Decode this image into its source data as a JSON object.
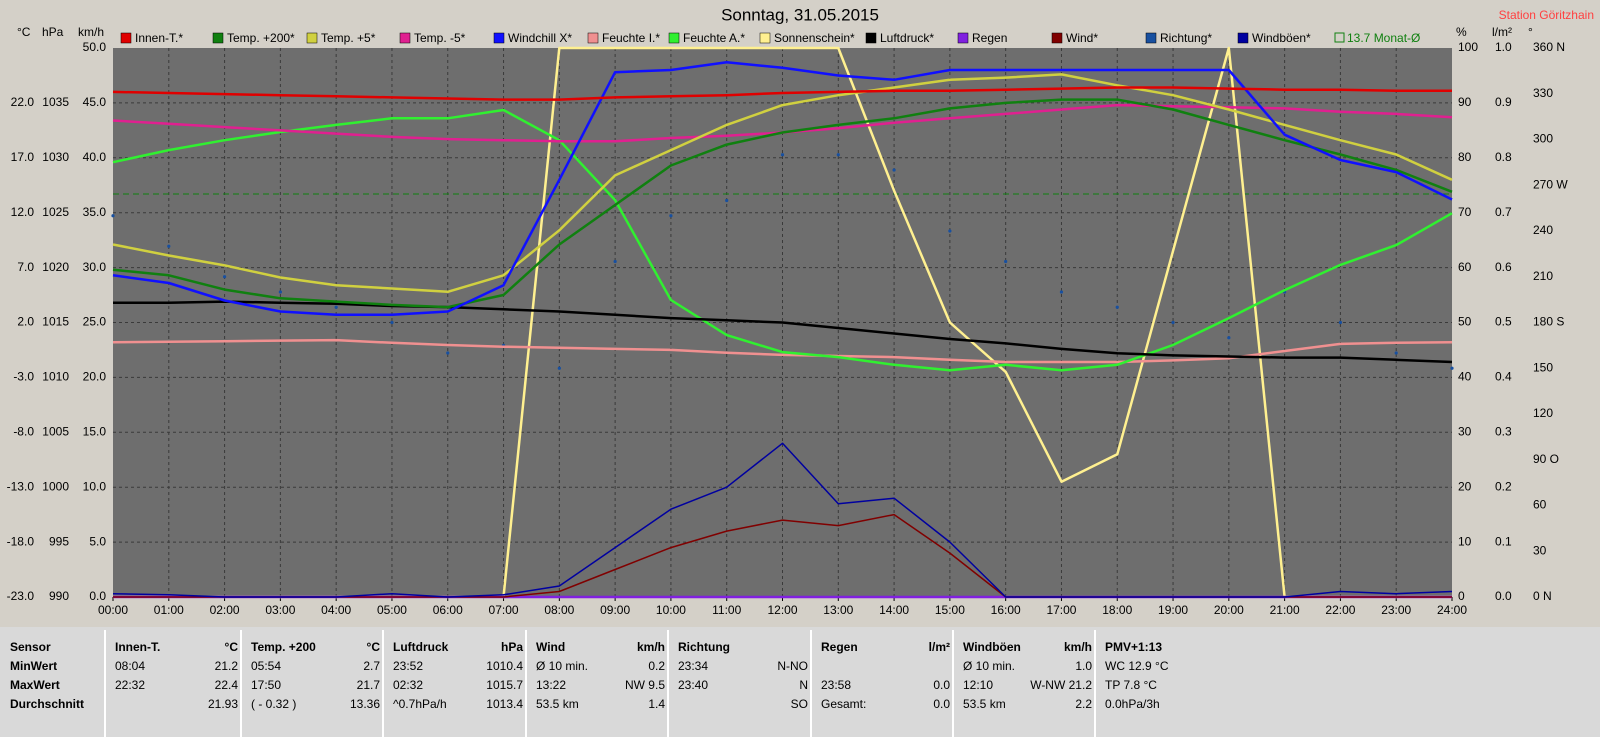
{
  "chart_data": {
    "type": "line",
    "title": "Sonntag, 31.05.2015",
    "station": "Station Göritzhain",
    "x": [
      0,
      1,
      2,
      3,
      4,
      5,
      6,
      7,
      8,
      9,
      10,
      11,
      12,
      13,
      14,
      15,
      16,
      17,
      18,
      19,
      20,
      21,
      22,
      23,
      24
    ],
    "xlim": [
      0,
      24
    ],
    "xticks": [
      {
        "value": 0,
        "label": "00:00"
      },
      {
        "value": 1,
        "label": "01:00"
      },
      {
        "value": 2,
        "label": "02:00"
      },
      {
        "value": 3,
        "label": "03:00"
      },
      {
        "value": 4,
        "label": "04:00"
      },
      {
        "value": 5,
        "label": "05:00"
      },
      {
        "value": 6,
        "label": "06:00"
      },
      {
        "value": 7,
        "label": "07:00"
      },
      {
        "value": 8,
        "label": "08:00"
      },
      {
        "value": 9,
        "label": "09:00"
      },
      {
        "value": 10,
        "label": "10:00"
      },
      {
        "value": 11,
        "label": "11:00"
      },
      {
        "value": 12,
        "label": "12:00"
      },
      {
        "value": 13,
        "label": "13:00"
      },
      {
        "value": 14,
        "label": "14:00"
      },
      {
        "value": 15,
        "label": "15:00"
      },
      {
        "value": 16,
        "label": "16:00"
      },
      {
        "value": 17,
        "label": "17:00"
      },
      {
        "value": 18,
        "label": "18:00"
      },
      {
        "value": 19,
        "label": "19:00"
      },
      {
        "value": 20,
        "label": "20:00"
      },
      {
        "value": 21,
        "label": "21:00"
      },
      {
        "value": 22,
        "label": "22:00"
      },
      {
        "value": 23,
        "label": "23:00"
      },
      {
        "value": 24,
        "label": "24:00"
      }
    ],
    "grid": true,
    "axes": {
      "temp": {
        "unit": "°C",
        "side": "left",
        "lim": [
          -23,
          27
        ],
        "ticks": [
          {
            "value": -23,
            "label": "-23.0"
          },
          {
            "value": -18,
            "label": "-18.0"
          },
          {
            "value": -13,
            "label": "-13.0"
          },
          {
            "value": -8,
            "label": "-8.0"
          },
          {
            "value": -3,
            "label": "-3.0"
          },
          {
            "value": 2,
            "label": "2.0"
          },
          {
            "value": 7,
            "label": "7.0"
          },
          {
            "value": 12,
            "label": "12.0"
          },
          {
            "value": 17,
            "label": "17.0"
          },
          {
            "value": 22,
            "label": "22.0"
          }
        ]
      },
      "hpa": {
        "unit": "hPa",
        "side": "left",
        "lim": [
          990,
          1040
        ],
        "ticks": [
          990,
          995,
          1000,
          1005,
          1010,
          1015,
          1020,
          1025,
          1030,
          1035
        ]
      },
      "kmh": {
        "unit": "km/h",
        "side": "left",
        "lim": [
          0,
          50
        ],
        "ticks": [
          {
            "value": 0,
            "label": "0.0"
          },
          {
            "value": 5,
            "label": "5.0"
          },
          {
            "value": 10,
            "label": "10.0"
          },
          {
            "value": 15,
            "label": "15.0"
          },
          {
            "value": 20,
            "label": "20.0"
          },
          {
            "value": 25,
            "label": "25.0"
          },
          {
            "value": 30,
            "label": "30.0"
          },
          {
            "value": 35,
            "label": "35.0"
          },
          {
            "value": 40,
            "label": "40.0"
          },
          {
            "value": 45,
            "label": "45.0"
          },
          {
            "value": 50,
            "label": "50.0"
          }
        ]
      },
      "pct": {
        "unit": "%",
        "side": "right",
        "lim": [
          0,
          100
        ],
        "ticks": [
          0,
          10,
          20,
          30,
          40,
          50,
          60,
          70,
          80,
          90,
          100
        ]
      },
      "rain": {
        "unit": "l/m²",
        "side": "right",
        "lim": [
          0,
          1
        ],
        "ticks": [
          {
            "value": 0,
            "label": "0.0"
          },
          {
            "value": 0.1,
            "label": "0.1"
          },
          {
            "value": 0.2,
            "label": "0.2"
          },
          {
            "value": 0.3,
            "label": "0.3"
          },
          {
            "value": 0.4,
            "label": "0.4"
          },
          {
            "value": 0.5,
            "label": "0.5"
          },
          {
            "value": 0.6,
            "label": "0.6"
          },
          {
            "value": 0.7,
            "label": "0.7"
          },
          {
            "value": 0.8,
            "label": "0.8"
          },
          {
            "value": 0.9,
            "label": "0.9"
          },
          {
            "value": 1,
            "label": "1.0"
          }
        ]
      },
      "deg": {
        "unit": "°",
        "side": "right",
        "lim": [
          0,
          360
        ],
        "ticks": [
          {
            "value": 0,
            "label": "0 N"
          },
          30,
          60,
          {
            "value": 90,
            "label": "90 O"
          },
          120,
          150,
          {
            "value": 180,
            "label": "180 S"
          },
          210,
          240,
          {
            "value": 270,
            "label": "270 W"
          },
          300,
          330,
          {
            "value": 360,
            "label": "360 N"
          }
        ]
      }
    },
    "series": [
      {
        "name": "Innen-T.*",
        "color": "#e00000",
        "axis": "temp",
        "values": [
          23.0,
          22.9,
          22.8,
          22.7,
          22.6,
          22.5,
          22.4,
          22.3,
          22.3,
          22.5,
          22.6,
          22.7,
          22.9,
          23.0,
          23.1,
          23.1,
          23.2,
          23.3,
          23.4,
          23.4,
          23.3,
          23.2,
          23.2,
          23.1,
          23.1
        ]
      },
      {
        "name": "Temp. +200*",
        "color": "#108010",
        "axis": "temp",
        "values": [
          6.8,
          6.3,
          5.0,
          4.2,
          3.9,
          3.6,
          3.4,
          4.5,
          9.1,
          12.7,
          16.3,
          18.2,
          19.3,
          20.0,
          20.6,
          21.5,
          22.0,
          22.3,
          22.3,
          21.4,
          20.0,
          18.6,
          17.3,
          15.9,
          13.9
        ]
      },
      {
        "name": "Temp. +5*",
        "color": "#d0d040",
        "axis": "temp",
        "values": [
          9.1,
          8.1,
          7.2,
          6.1,
          5.4,
          5.1,
          4.8,
          6.3,
          10.4,
          15.4,
          17.7,
          20.0,
          21.8,
          22.7,
          23.4,
          24.1,
          24.3,
          24.6,
          23.6,
          22.7,
          21.4,
          20.0,
          18.6,
          17.3,
          15.0
        ]
      },
      {
        "name": "Temp. -5*",
        "color": "#e02090",
        "axis": "temp",
        "values": [
          20.4,
          20.1,
          19.8,
          19.5,
          19.2,
          18.9,
          18.7,
          18.6,
          18.5,
          18.5,
          18.8,
          19.0,
          19.3,
          19.7,
          20.2,
          20.6,
          21.0,
          21.4,
          21.8,
          21.7,
          21.6,
          21.5,
          21.2,
          21.0,
          20.7
        ]
      },
      {
        "name": "Windchill X*",
        "color": "#1010ff",
        "axis": "temp",
        "values": [
          6.3,
          5.6,
          4.0,
          3.0,
          2.7,
          2.7,
          3.0,
          5.4,
          15.0,
          24.8,
          25.0,
          25.7,
          25.2,
          24.5,
          24.1,
          25.0,
          25.0,
          25.0,
          25.0,
          25.0,
          25.0,
          19.1,
          16.8,
          15.7,
          13.2
        ]
      },
      {
        "name": "Feuchte I.*",
        "color": "#f09090",
        "axis": "pct",
        "values": [
          46.4,
          46.5,
          46.6,
          46.7,
          46.8,
          46.3,
          45.9,
          45.6,
          45.4,
          45.2,
          45.0,
          44.5,
          44.1,
          43.9,
          43.7,
          43.2,
          42.8,
          42.8,
          42.8,
          43.1,
          43.5,
          44.8,
          46.1,
          46.3,
          46.4
        ]
      },
      {
        "name": "Feuchte A.*",
        "color": "#30f030",
        "axis": "pct",
        "values": [
          79.2,
          81.4,
          83.2,
          84.7,
          86.0,
          87.2,
          87.2,
          88.7,
          83.2,
          72.3,
          54.1,
          47.7,
          44.6,
          43.7,
          42.3,
          41.3,
          42.3,
          41.3,
          42.3,
          45.9,
          50.8,
          55.9,
          60.5,
          64.1,
          69.9
        ]
      },
      {
        "name": "Sonnenschein*",
        "color": "#fff090",
        "axis": "pct",
        "values": [
          0,
          0,
          0,
          0,
          0,
          0,
          0,
          0,
          100,
          100,
          100,
          100,
          100,
          100,
          74,
          50,
          41,
          21,
          26,
          63,
          100,
          0,
          0,
          0,
          0
        ]
      },
      {
        "name": "Luftdruck*",
        "color": "#000000",
        "axis": "hpa",
        "values": [
          1016.8,
          1016.8,
          1016.9,
          1016.8,
          1016.7,
          1016.5,
          1016.4,
          1016.2,
          1016.0,
          1015.7,
          1015.4,
          1015.2,
          1015.0,
          1014.5,
          1014.0,
          1013.5,
          1013.1,
          1012.6,
          1012.2,
          1012.0,
          1011.9,
          1011.8,
          1011.8,
          1011.6,
          1011.4
        ]
      },
      {
        "name": "Regen",
        "color": "#8020e0",
        "axis": "rain",
        "values": [
          0,
          0,
          0,
          0,
          0,
          0,
          0,
          0,
          0,
          0,
          0,
          0,
          0,
          0,
          0,
          0,
          0,
          0,
          0,
          0,
          0,
          0,
          0,
          0,
          0
        ]
      },
      {
        "name": "Wind*",
        "color": "#800000",
        "axis": "kmh",
        "values": [
          0,
          0,
          0,
          0,
          0,
          0,
          0,
          0,
          0.5,
          2.5,
          4.5,
          6.0,
          7.0,
          6.5,
          7.5,
          4.0,
          0,
          0,
          0,
          0,
          0,
          0,
          0,
          0,
          0
        ]
      },
      {
        "name": "Richtung*",
        "color": "#1850a0",
        "axis": "deg",
        "dots": true,
        "values": [
          250,
          230,
          210,
          200,
          190,
          180,
          160,
          165,
          150,
          220,
          250,
          260,
          290,
          290,
          280,
          240,
          220,
          200,
          190,
          180,
          170,
          200,
          180,
          160,
          150
        ]
      },
      {
        "name": "Windböen*",
        "color": "#0000a0",
        "axis": "kmh",
        "values": [
          0.3,
          0.2,
          0,
          0,
          0,
          0.3,
          0,
          0.2,
          1.0,
          4.5,
          8.0,
          10.0,
          14.0,
          8.5,
          9.0,
          5.0,
          0,
          0,
          0,
          0,
          0,
          0,
          0.5,
          0.3,
          0.5
        ]
      }
    ],
    "monthly_mean": {
      "label": "13.7 Monat-Ø",
      "value": 13.7,
      "axis": "temp",
      "color": "#108010"
    }
  },
  "table": {
    "sensor": {
      "name": "Sensor",
      "row_labels": [
        "MinWert",
        "MaxWert",
        "Durchschnitt"
      ]
    },
    "columns": [
      {
        "name": "Innen-T.",
        "unit": "°C",
        "rows": [
          {
            "time": "08:04",
            "value": "21.2"
          },
          {
            "time": "22:32",
            "value": "22.4"
          },
          {
            "value": "21.93"
          }
        ]
      },
      {
        "name": "Temp. +200",
        "unit": "°C",
        "rows": [
          {
            "time": "05:54",
            "value": "2.7"
          },
          {
            "time": "17:50",
            "value": "21.7"
          },
          {
            "time": "( - 0.32 )",
            "value": "13.36"
          }
        ]
      },
      {
        "name": "Luftdruck",
        "unit": "hPa",
        "rows": [
          {
            "time": "23:52",
            "value": "1010.4"
          },
          {
            "time": "02:32",
            "value": "1015.7"
          },
          {
            "time": "^0.7hPa/h",
            "value": "1013.4"
          }
        ]
      },
      {
        "name": "Wind",
        "unit": "km/h",
        "rows": [
          {
            "time": "Ø 10 min.",
            "value": "0.2"
          },
          {
            "time": "13:22",
            "value": "NW 9.5"
          },
          {
            "time": "53.5 km",
            "value": "1.4"
          }
        ]
      },
      {
        "name": "Richtung",
        "rows": [
          {
            "time": "23:34",
            "value": "N-NO"
          },
          {
            "time": "23:40",
            "value": "N"
          },
          {
            "value": "SO"
          }
        ]
      },
      {
        "name": "Regen",
        "unit": "l/m²",
        "rows": [
          {},
          {
            "time": "23:58",
            "value": "0.0"
          },
          {
            "time": "Gesamt:",
            "value": "0.0"
          }
        ]
      },
      {
        "name": "Windböen",
        "unit": "km/h",
        "rows": [
          {
            "time": "Ø 10 min.",
            "value": "1.0"
          },
          {
            "time": "12:10",
            "value": "W-NW 21.2"
          },
          {
            "time": "53.5 km",
            "value": "2.2"
          }
        ]
      },
      {
        "name": "PMV+1:13",
        "rows": [
          {
            "time": "WC 12.9 °C"
          },
          {
            "time": "TP 7.8 °C"
          },
          {
            "time": "0.0hPa/3h"
          }
        ]
      }
    ]
  }
}
